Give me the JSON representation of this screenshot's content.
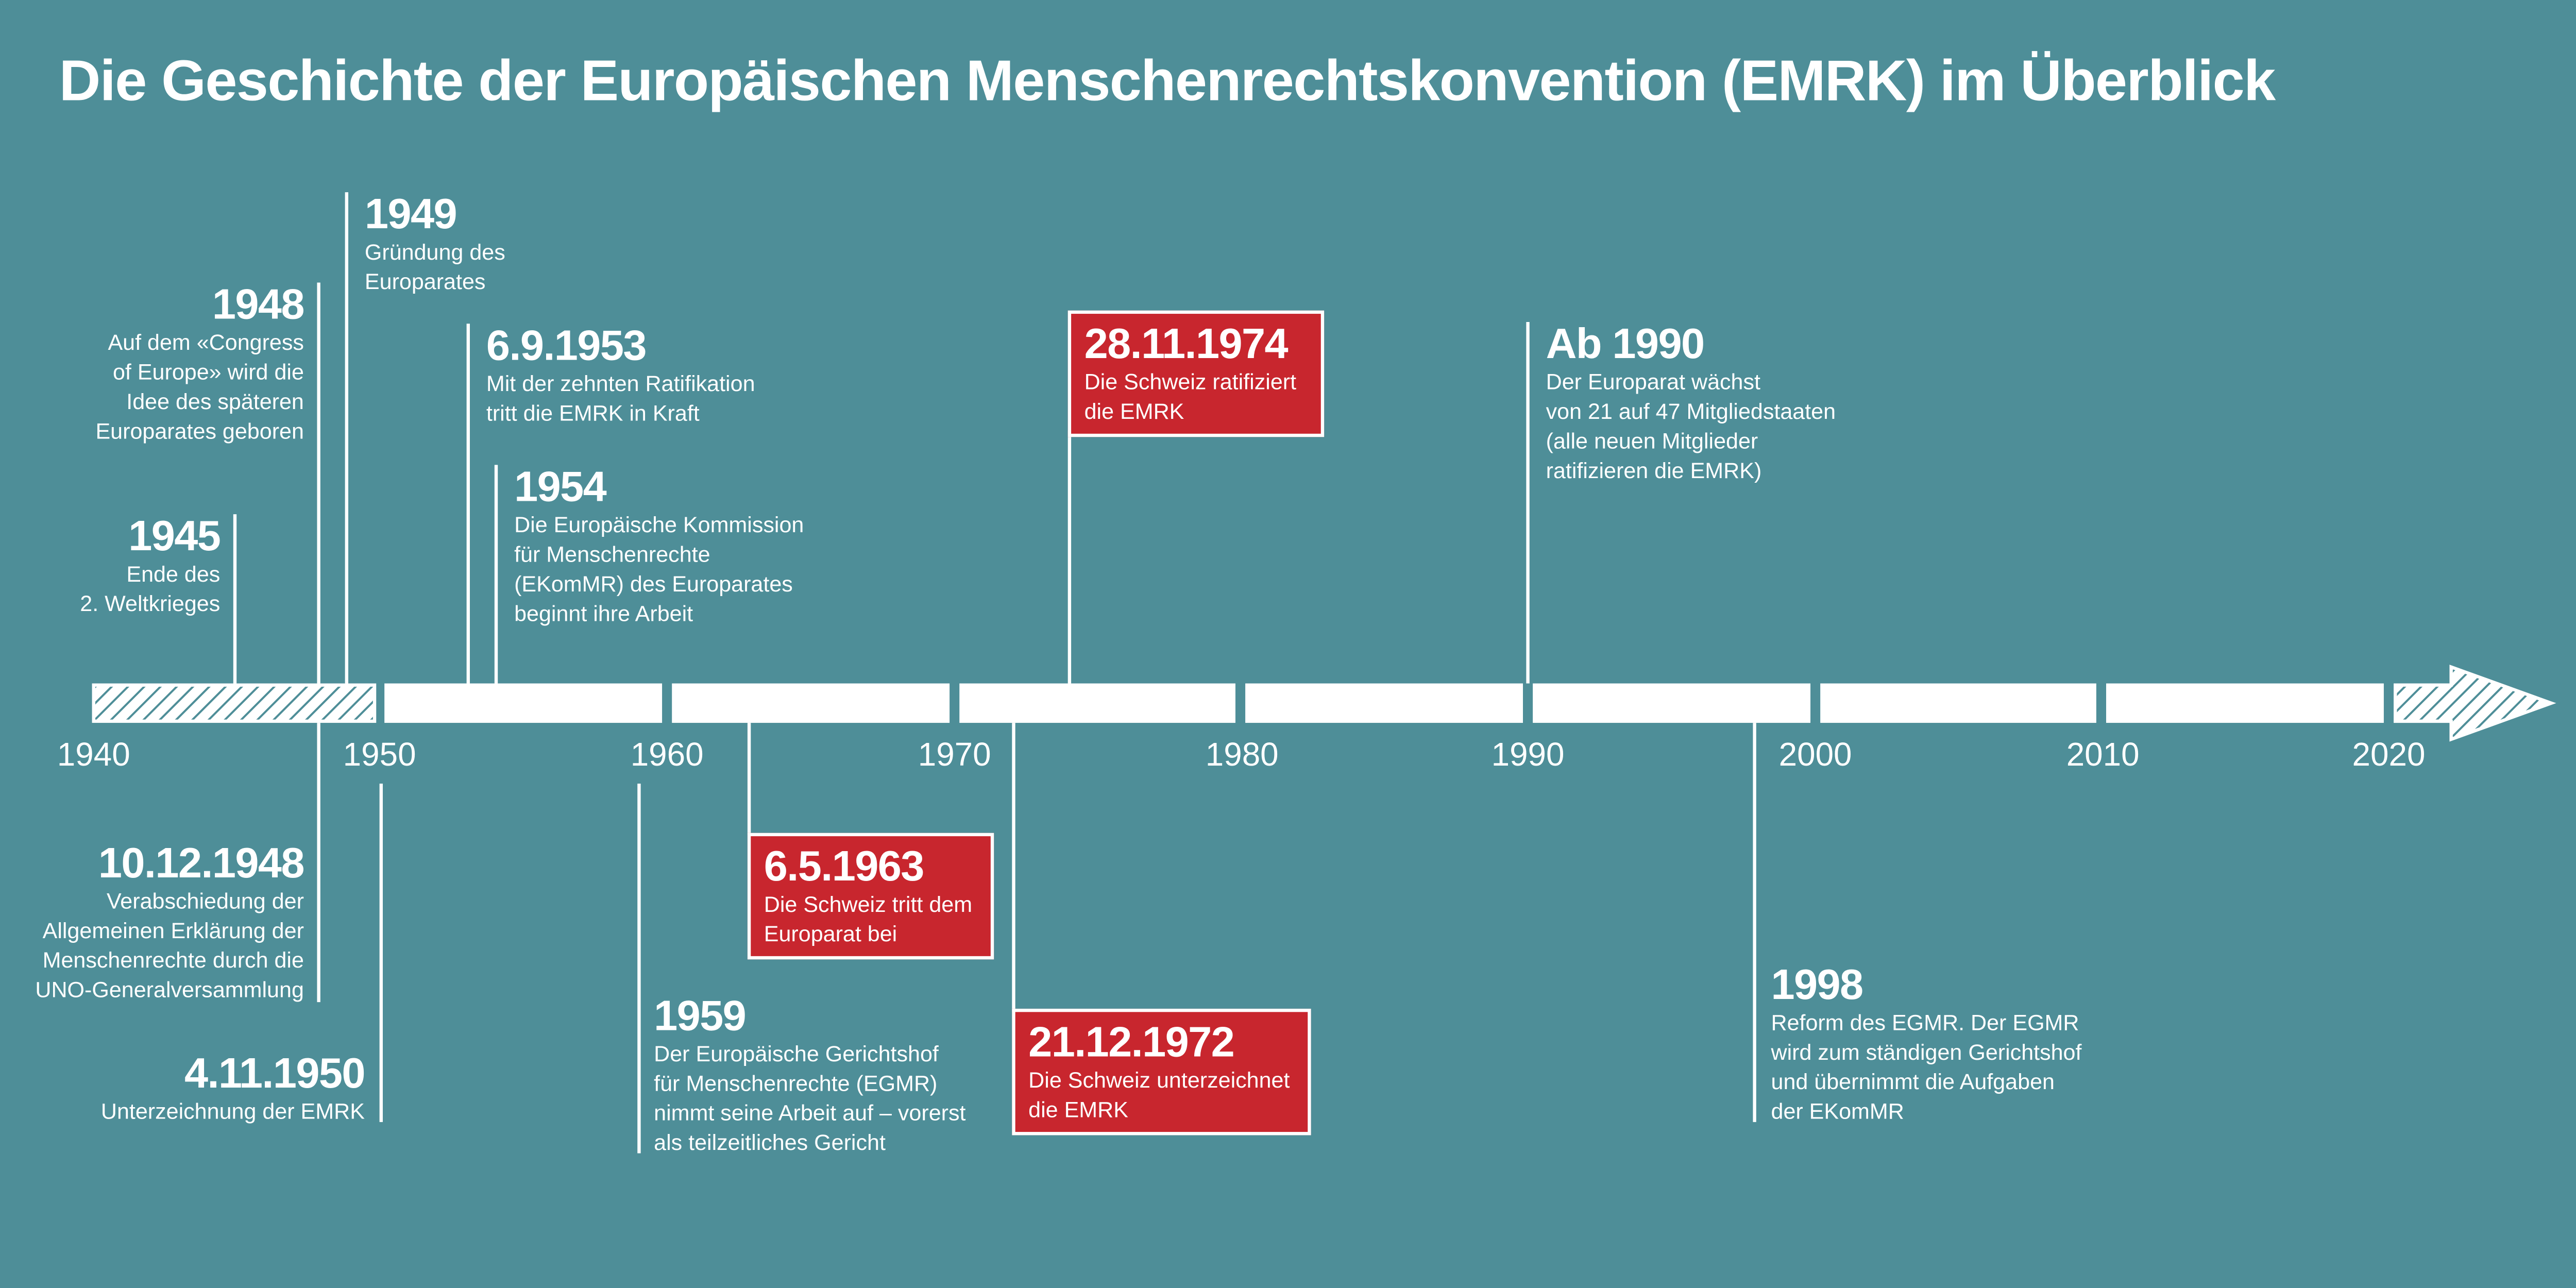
{
  "title": "Die Geschichte der Europäischen Menschenrechtskonvention (EMRK) im Überblick",
  "colors": {
    "background": "#4e8e98",
    "text": "#ffffff",
    "highlight": "#c8262e"
  },
  "axis": {
    "labels": [
      "1940",
      "1950",
      "1960",
      "1970",
      "1980",
      "1990",
      "2000",
      "2010",
      "2020"
    ]
  },
  "events": {
    "e1945": {
      "date": "1945",
      "text": "Ende des\n2. Weltkrieges"
    },
    "e1948": {
      "date": "1948",
      "text": "Auf dem «Congress\nof Europe» wird die\nIdee des späteren\nEuroparates geboren"
    },
    "e1949": {
      "date": "1949",
      "text": "Gründung des\nEuroparates"
    },
    "e1953": {
      "date": "6.9.1953",
      "text": "Mit der zehnten Ratifikation\ntritt die EMRK in Kraft"
    },
    "e1954": {
      "date": "1954",
      "text": "Die Europäische Kommission\nfür Menschenrechte\n(EKomMR) des Europarates\nbeginnt ihre Arbeit"
    },
    "e1974": {
      "date": "28.11.1974",
      "text": "Die Schweiz ratifiziert\ndie EMRK"
    },
    "e1990": {
      "date": "Ab 1990",
      "text": "Der Europarat wächst\nvon 21 auf 47 Mitgliedstaaten\n(alle neuen Mitglieder\nratifizieren die EMRK)"
    },
    "e1948b": {
      "date": "10.12.1948",
      "text": "Verabschiedung der\nAllgemeinen Erklärung der\nMenschenrechte durch die\nUNO-Generalversammlung"
    },
    "e1950": {
      "date": "4.11.1950",
      "text": "Unterzeichnung der EMRK"
    },
    "e1959": {
      "date": "1959",
      "text": "Der Europäische Gerichtshof\nfür Menschenrechte (EGMR)\nnimmt seine Arbeit auf – vorerst\nals teilzeitliches Gericht"
    },
    "e1963": {
      "date": "6.5.1963",
      "text": "Die Schweiz tritt dem\nEuroparat bei"
    },
    "e1972": {
      "date": "21.12.1972",
      "text": "Die Schweiz unterzeichnet\ndie EMRK"
    },
    "e1998": {
      "date": "1998",
      "text": "Reform des EGMR. Der EGMR\nwird zum ständigen Gerichtshof\nund übernimmt die Aufgaben\nder EKomMR"
    }
  }
}
